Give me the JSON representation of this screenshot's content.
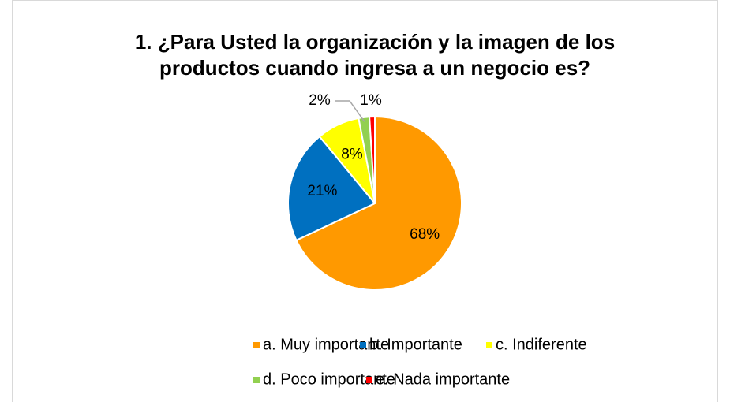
{
  "chart_data": {
    "type": "pie",
    "title": [
      "1. ¿Para Usted la organización y la imagen de los",
      "productos cuando ingresa a un negocio es?"
    ],
    "categories": [
      "a. Muy importante",
      "b. Importante",
      "c. Indiferente",
      "d. Poco importante",
      "e. Nada importante"
    ],
    "values": [
      68,
      21,
      8,
      2,
      1
    ],
    "value_labels": [
      "68%",
      "21%",
      "8%",
      "2%",
      "1%"
    ],
    "colors": [
      "#FF9900",
      "#0070C0",
      "#FFFF00",
      "#92D050",
      "#FF0000"
    ],
    "legend": "bottom"
  }
}
